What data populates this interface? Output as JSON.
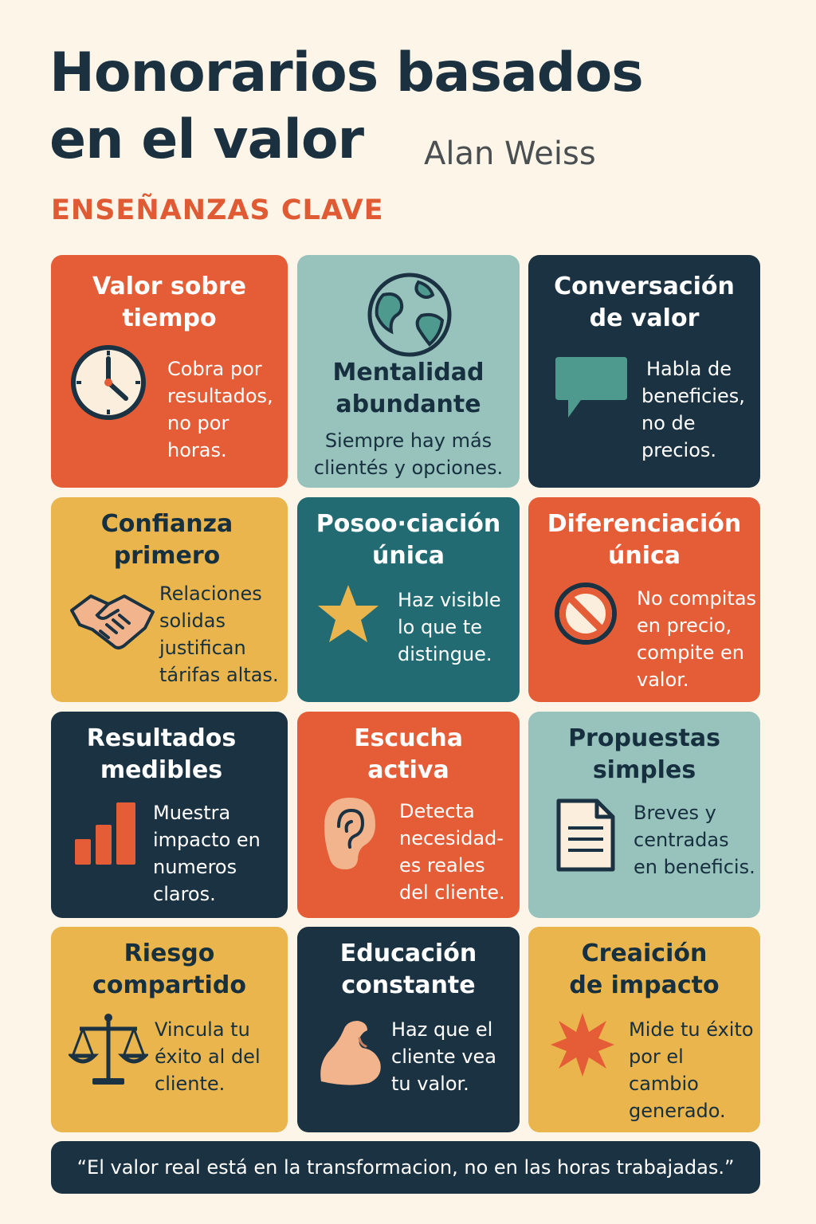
{
  "header": {
    "title_line1": "Honorarios basados",
    "title_line2": "en el valor",
    "author": "Alan Weiss",
    "subtitle": "ENSEÑANZAS CLAVE"
  },
  "cards": [
    {
      "title": [
        "Valor sobre",
        "tiempo"
      ],
      "desc": [
        "Cobra por",
        "resultados,",
        "no por",
        "horas."
      ],
      "icon": "clock-icon",
      "color": "#e45d37"
    },
    {
      "title": [
        "Mentalidad",
        "abundante"
      ],
      "desc": [
        "Siempre hay más",
        "clientés y opciones."
      ],
      "icon": "globe-icon",
      "color": "#98c2bc"
    },
    {
      "title": [
        "Conversación",
        "de valor"
      ],
      "desc": [
        "Habla de",
        "beneficies,",
        "no de",
        "precios."
      ],
      "icon": "speech-bubble-icon",
      "color": "#1b3242"
    },
    {
      "title": [
        "Confianza",
        "primero"
      ],
      "desc": [
        "Relaciones",
        "solidas",
        "justifican",
        "tárifas altas."
      ],
      "icon": "handshake-icon",
      "color": "#e9b54c"
    },
    {
      "title": [
        "Posoo·ciación",
        "única"
      ],
      "desc": [
        "Haz visible",
        "lo que te",
        "distingue."
      ],
      "icon": "star-icon",
      "color": "#236b72"
    },
    {
      "title": [
        "Diferenciación",
        "única"
      ],
      "desc": [
        "No compitas",
        "en precio,",
        "compite en",
        "valor."
      ],
      "icon": "prohibited-icon",
      "color": "#e45d37"
    },
    {
      "title": [
        "Resultados",
        "medibles"
      ],
      "desc": [
        "Muestra",
        "impacto en",
        "numeros",
        "claros."
      ],
      "icon": "bar-chart-icon",
      "color": "#1b3242"
    },
    {
      "title": [
        "Escucha",
        "activa"
      ],
      "desc": [
        "Detecta",
        "necesidad-",
        "es reales",
        "del cliente."
      ],
      "icon": "ear-icon",
      "color": "#e45d37"
    },
    {
      "title": [
        "Propuestas",
        "simples"
      ],
      "desc": [
        "Breves y",
        "centradas",
        "en beneficis."
      ],
      "icon": "document-icon",
      "color": "#98c2bc"
    },
    {
      "title": [
        "Riesgo",
        "compartido"
      ],
      "desc": [
        "Vincula tu",
        "éxito al del",
        "cliente."
      ],
      "icon": "scales-icon",
      "color": "#e9b54c"
    },
    {
      "title": [
        "Educación",
        "constante"
      ],
      "desc": [
        "Haz que el",
        "cliente vea",
        "tu valor."
      ],
      "icon": "flexed-arm-icon",
      "color": "#1b3242"
    },
    {
      "title": [
        "Creaición",
        "de impacto"
      ],
      "desc": [
        "Mide tu éxito",
        "por el",
        "cambio",
        "generado."
      ],
      "icon": "burst-icon",
      "color": "#e9b54c"
    }
  ],
  "quote": "“El valor real está en la transformacion, no en las horas trabajadas.”"
}
